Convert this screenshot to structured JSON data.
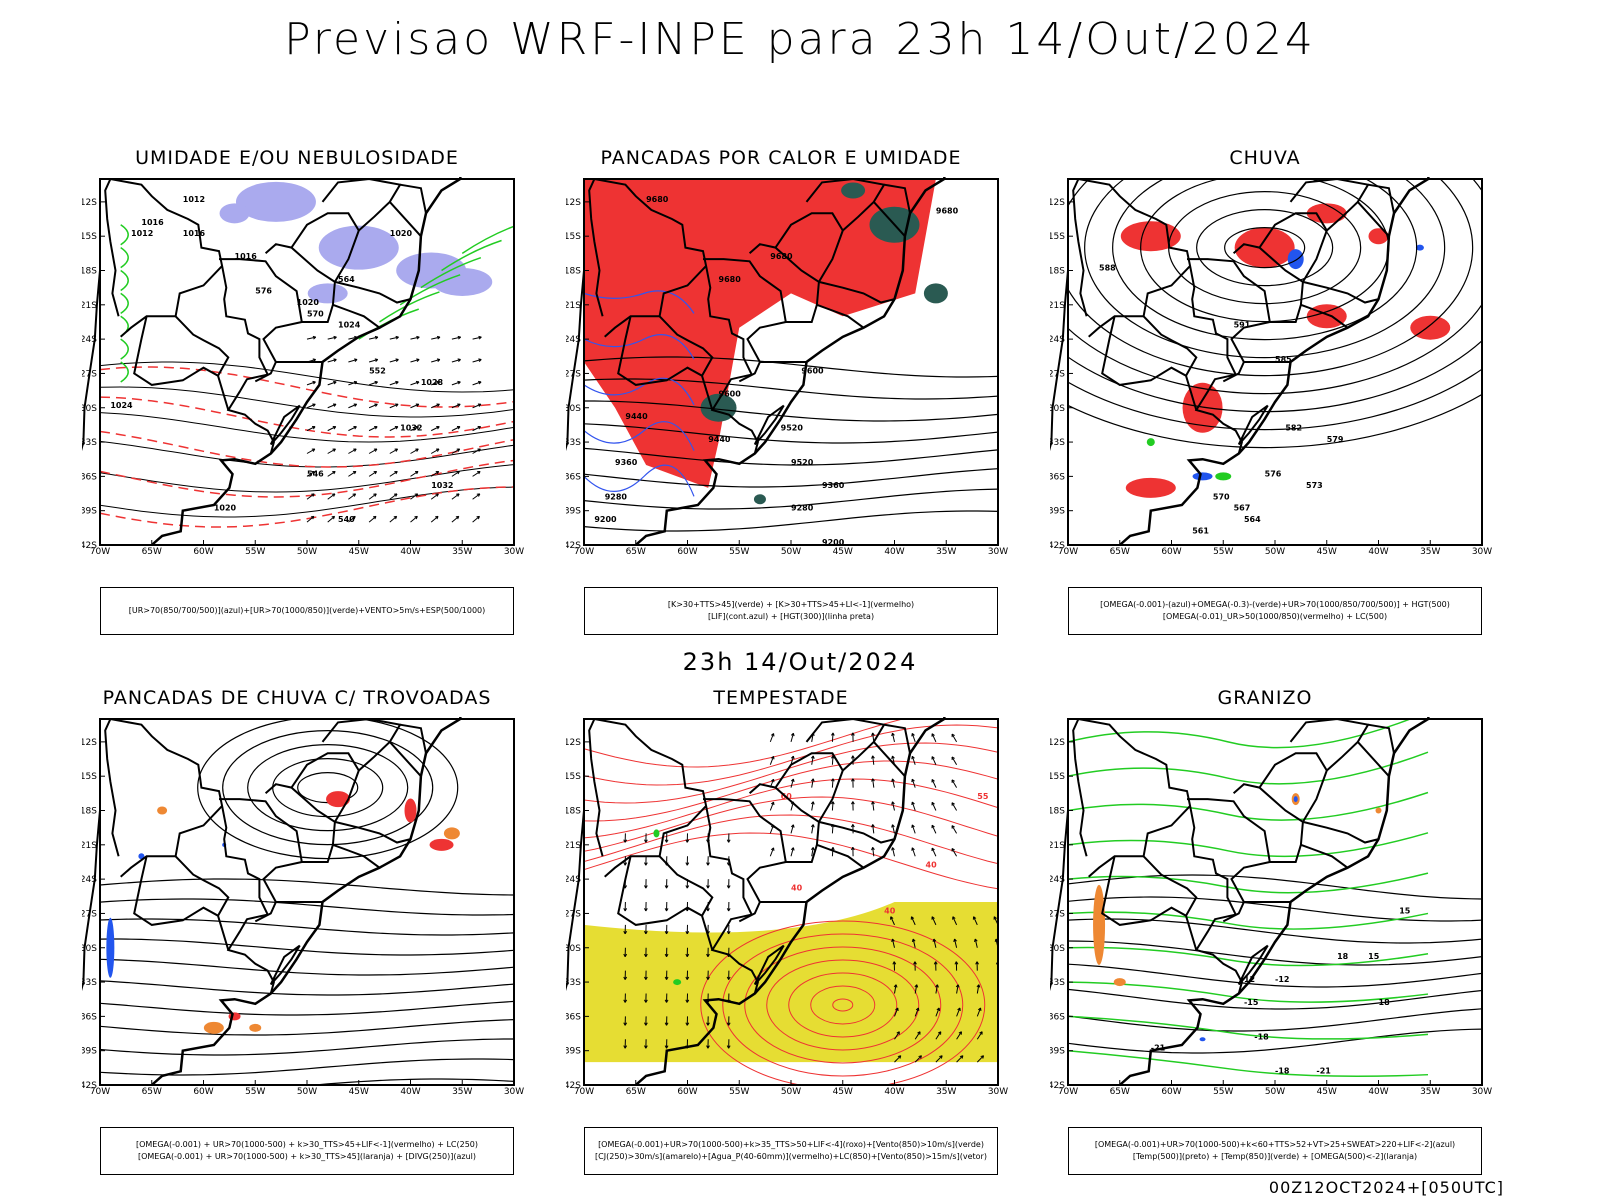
{
  "title": "Previsao WRF-INPE  para 23h 14/Out/2024",
  "subtitle": "23h 14/Out/2024",
  "footer": "00Z12OCT2024+[050UTC]",
  "axes": {
    "lat_labels": [
      "12S",
      "15S",
      "18S",
      "21S",
      "24S",
      "27S",
      "30S",
      "33S",
      "36S",
      "39S",
      "42S"
    ],
    "lon_labels": [
      "70W",
      "65W",
      "60W",
      "55W",
      "50W",
      "45W",
      "40W",
      "35W",
      "30W"
    ]
  },
  "panels": [
    {
      "title": "UMIDADE E/OU NEBULOSIDADE",
      "legend": [
        "[UR>70(850/700/500)](azul)+[UR>70(1000/850)](verde)+VENTO>5m/s+ESP(500/1000)"
      ],
      "contour_labels": [
        "1012",
        "1016",
        "1016",
        "1016",
        "1020",
        "1020",
        "1024",
        "1028",
        "1032",
        "1032",
        "1024",
        "1020",
        "1012",
        "576",
        "570",
        "564",
        "552",
        "546",
        "540"
      ],
      "colors": {
        "fill": "#aaaaee",
        "contour": "#22cc22",
        "dashed": "#ee3333"
      }
    },
    {
      "title": "PANCADAS POR CALOR E UMIDADE",
      "legend": [
        "[K>30+TTS>45](verde) + [K>30+TTS>45+LI<-1](vermelho)",
        "[LIF](cont.azul) + [HGT(300)](linha preta)"
      ],
      "contour_labels": [
        "9680",
        "9680",
        "9680",
        "9680",
        "9600",
        "9600",
        "9520",
        "9520",
        "9440",
        "9440",
        "9360",
        "9360",
        "9280",
        "9280",
        "9200",
        "9200"
      ],
      "colors": {
        "fill": "#ee3333",
        "dark": "#2a5a52",
        "contour": "#3355ee"
      }
    },
    {
      "title": "CHUVA",
      "legend": [
        "[OMEGA(-0.001)-(azul)+OMEGA(-0.3)-(verde)+UR>70(1000/850/700/500)] + HGT(500)",
        "[OMEGA(-0.01)_UR>50(1000/850)(vermelho) + LC(500)"
      ],
      "contour_labels": [
        "591",
        "588",
        "585",
        "582",
        "579",
        "576",
        "573",
        "570",
        "567",
        "564",
        "561"
      ],
      "colors": {
        "fill": "#ee3333",
        "blue": "#2255ee",
        "green": "#22cc22"
      }
    },
    {
      "title": "PANCADAS DE CHUVA C/ TROVOADAS",
      "legend": [
        "[OMEGA(-0.001) + UR>70(1000-500) + k>30_TTS>45+LIF<-1](vermelho) + LC(250)",
        "[OMEGA(-0.001) + UR>70(1000-500) + k>30_TTS>45](laranja) + [DIVG(250)](azul)"
      ],
      "contour_labels": [],
      "colors": {
        "red": "#ee3333",
        "orange": "#ee8833",
        "blue": "#2255ee"
      }
    },
    {
      "title": "TEMPESTADE",
      "legend": [
        "[OMEGA(-0.001)+UR>70(1000-500)+k>35_TTS>50+LIF<-4](roxo)+[Vento(850)>10m/s](verde)",
        "[CJ(250)>30m/s](amarelo)+[Agua_P(40-60mm)](vermelho)+LC(850)+[Vento(850)>15m/s](vetor)"
      ],
      "contour_labels": [
        "40",
        "40",
        "40",
        "55",
        "60"
      ],
      "colors": {
        "yellow": "#e6dd33",
        "red": "#ee3333",
        "green": "#22cc22"
      }
    },
    {
      "title": "GRANIZO",
      "legend": [
        "[OMEGA(-0.001)+UR>70(1000-500)+k<60+TTS>52+VT>25+SWEAT>220+LIF<-2](azul)",
        "[Temp(500)](preto) + [Temp(850)](verde) + [OMEGA(500)<-2](laranja)"
      ],
      "contour_labels": [
        "-12",
        "-15",
        "-18",
        "-18",
        "-21",
        "-21",
        "15",
        "15",
        "18",
        "18",
        "12"
      ],
      "colors": {
        "green": "#22cc22",
        "orange": "#ee8833",
        "blue": "#2255ee"
      }
    }
  ]
}
